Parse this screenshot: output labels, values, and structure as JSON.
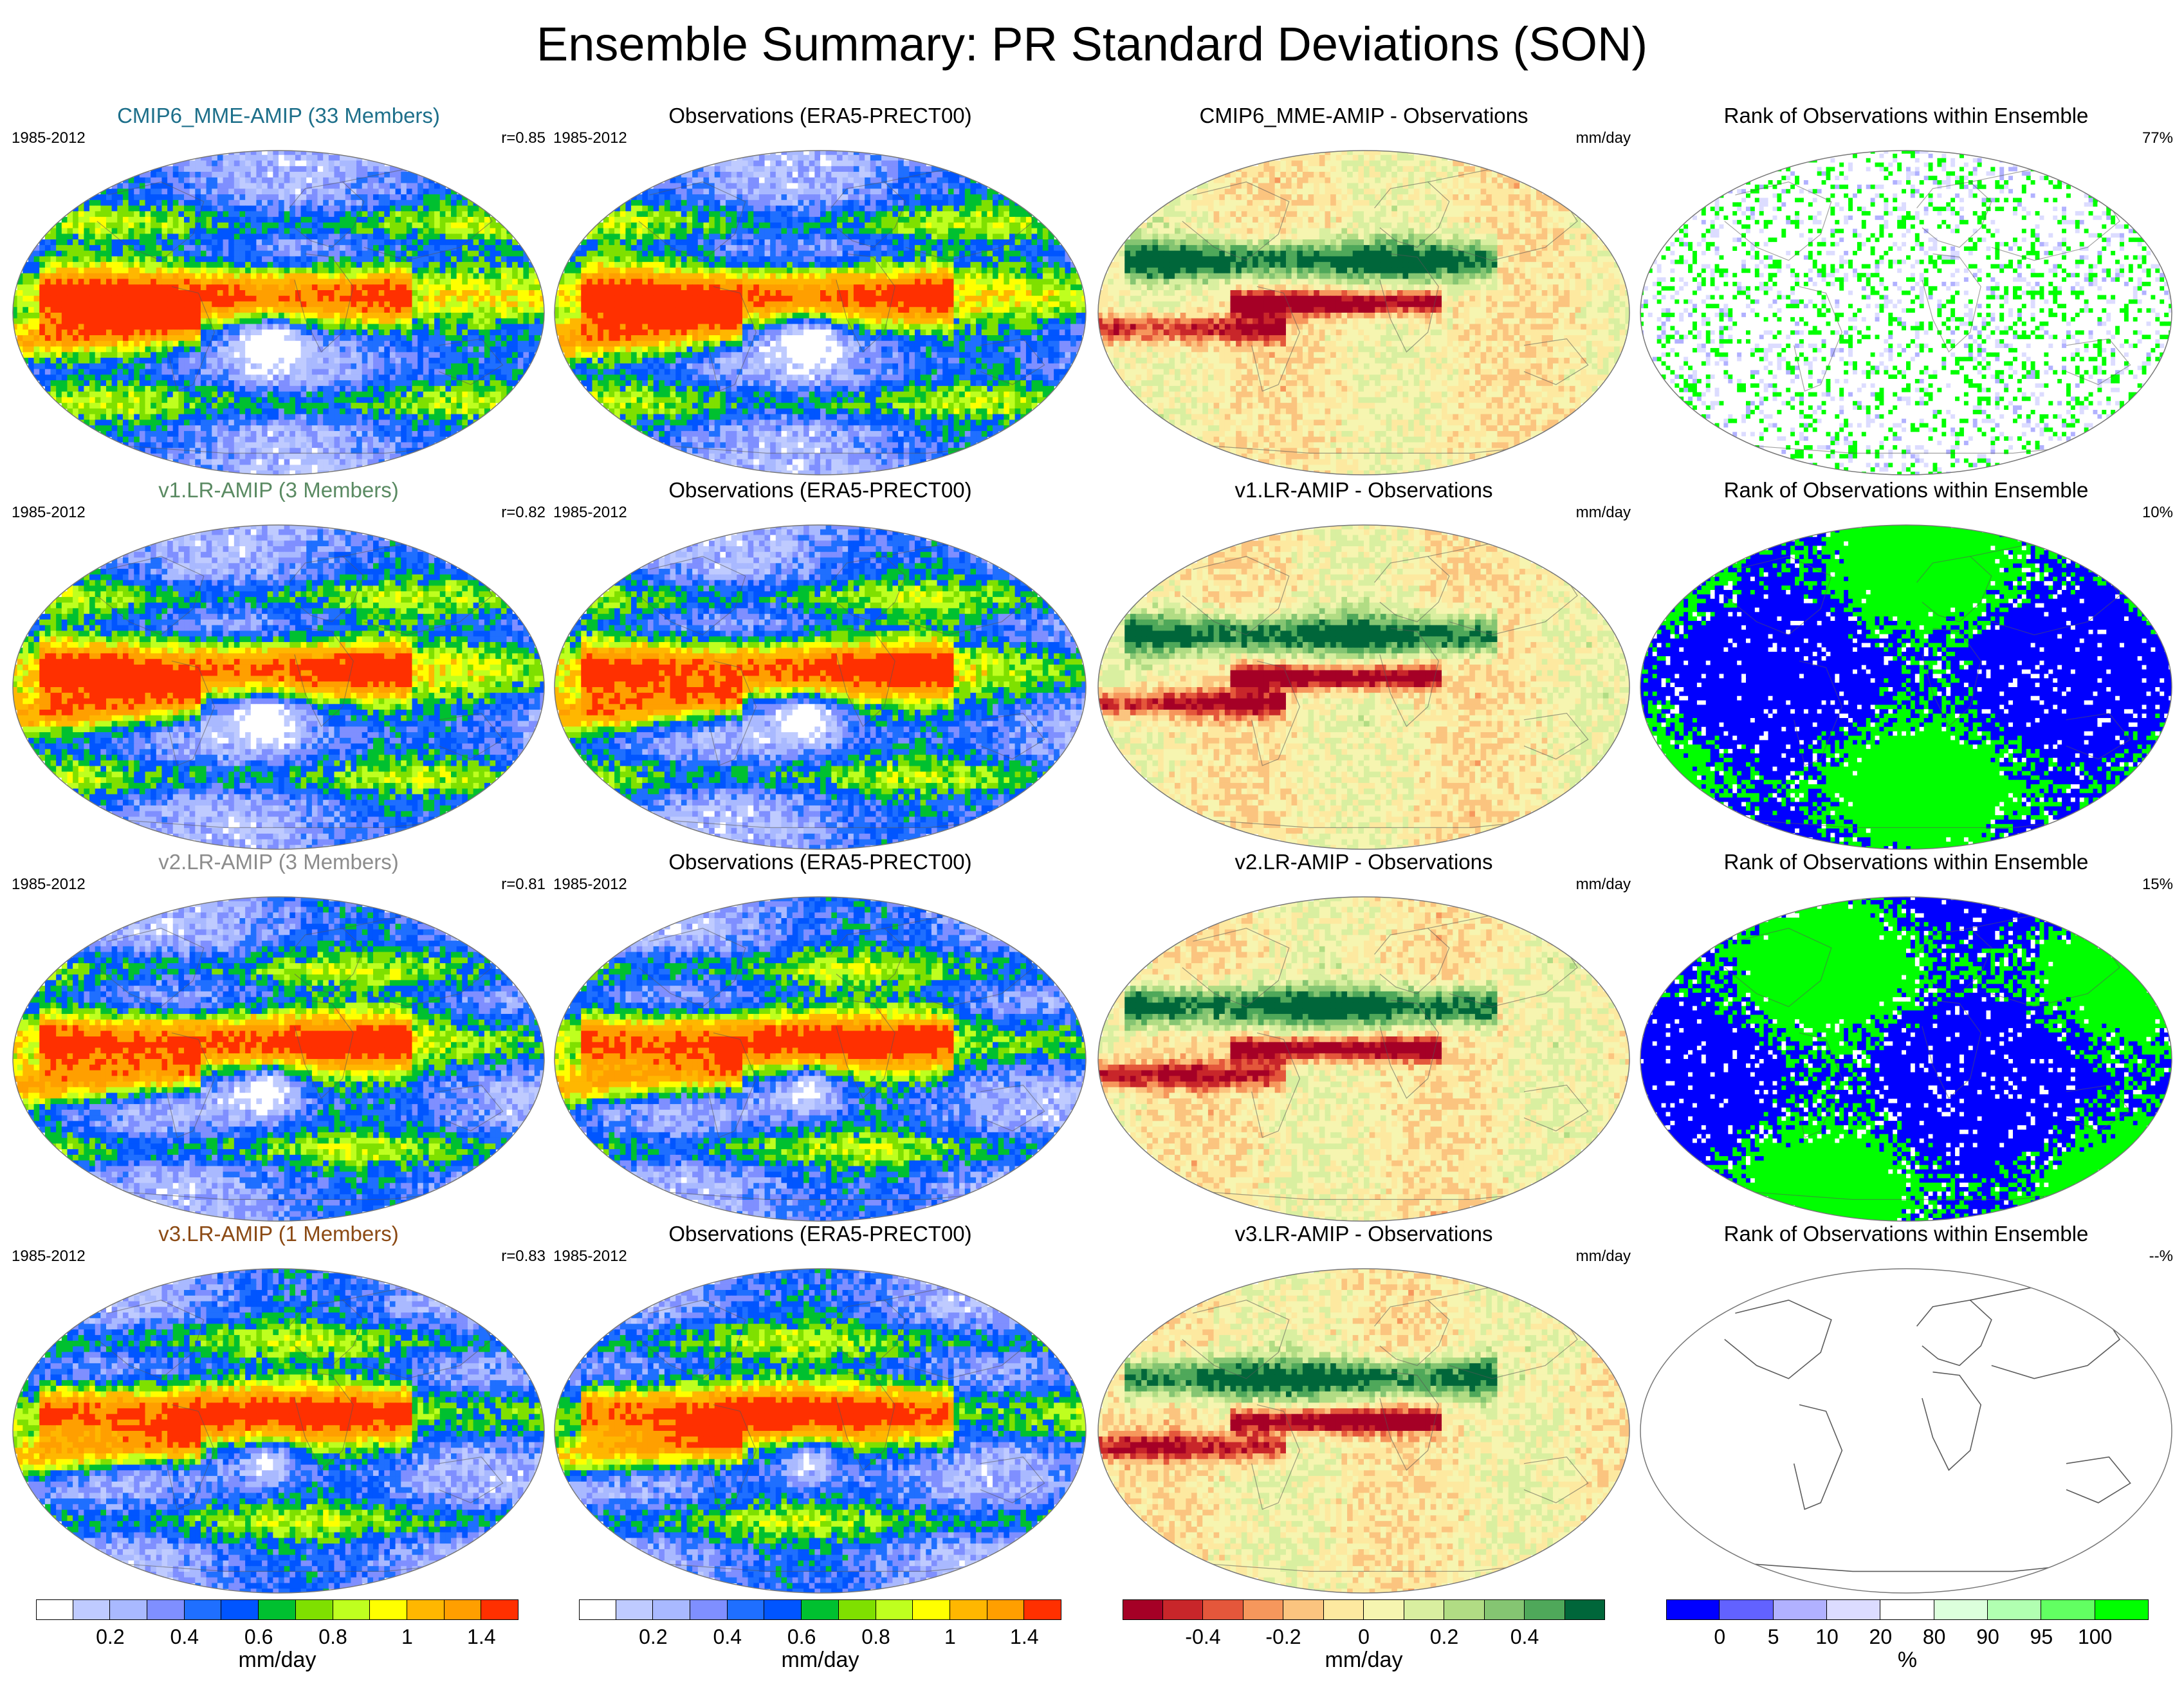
{
  "title": "Ensemble Summary: PR Standard Deviations (SON)",
  "chart_data": [
    {
      "type": "heatmap",
      "panel": "model",
      "row": 0,
      "title": "CMIP6_MME-AMIP (33 Members)",
      "title_color": "#1d6f8a",
      "period": "1985-2012",
      "stat": "r=0.85",
      "colorbar": "precip"
    },
    {
      "type": "heatmap",
      "panel": "obs",
      "row": 0,
      "title": "Observations (ERA5-PRECT00)",
      "title_color": "#000000",
      "period": "1985-2012",
      "stat": "",
      "colorbar": "precip"
    },
    {
      "type": "heatmap",
      "panel": "diff",
      "row": 0,
      "title": "CMIP6_MME-AMIP - Observations",
      "title_color": "#000000",
      "period": "",
      "stat": "mm/day",
      "colorbar": "diff"
    },
    {
      "type": "heatmap",
      "panel": "rank",
      "row": 0,
      "title": "Rank of Observations within Ensemble",
      "title_color": "#000000",
      "period": "",
      "stat": "77%",
      "colorbar": "rank"
    },
    {
      "type": "heatmap",
      "panel": "model",
      "row": 1,
      "title": "v1.LR-AMIP (3 Members)",
      "title_color": "#5a8a62",
      "period": "1985-2012",
      "stat": "r=0.82",
      "colorbar": "precip"
    },
    {
      "type": "heatmap",
      "panel": "obs",
      "row": 1,
      "title": "Observations (ERA5-PRECT00)",
      "title_color": "#000000",
      "period": "1985-2012",
      "stat": "",
      "colorbar": "precip"
    },
    {
      "type": "heatmap",
      "panel": "diff",
      "row": 1,
      "title": "v1.LR-AMIP - Observations",
      "title_color": "#000000",
      "period": "",
      "stat": "mm/day",
      "colorbar": "diff"
    },
    {
      "type": "heatmap",
      "panel": "rank",
      "row": 1,
      "title": "Rank of Observations within Ensemble",
      "title_color": "#000000",
      "period": "",
      "stat": "10%",
      "colorbar": "rank"
    },
    {
      "type": "heatmap",
      "panel": "model",
      "row": 2,
      "title": "v2.LR-AMIP (3 Members)",
      "title_color": "#8c8c8c",
      "period": "1985-2012",
      "stat": "r=0.81",
      "colorbar": "precip"
    },
    {
      "type": "heatmap",
      "panel": "obs",
      "row": 2,
      "title": "Observations (ERA5-PRECT00)",
      "title_color": "#000000",
      "period": "1985-2012",
      "stat": "",
      "colorbar": "precip"
    },
    {
      "type": "heatmap",
      "panel": "diff",
      "row": 2,
      "title": "v2.LR-AMIP - Observations",
      "title_color": "#000000",
      "period": "",
      "stat": "mm/day",
      "colorbar": "diff"
    },
    {
      "type": "heatmap",
      "panel": "rank",
      "row": 2,
      "title": "Rank of Observations within Ensemble",
      "title_color": "#000000",
      "period": "",
      "stat": "15%",
      "colorbar": "rank"
    },
    {
      "type": "heatmap",
      "panel": "model",
      "row": 3,
      "title": "v3.LR-AMIP (1 Members)",
      "title_color": "#8b4a14",
      "period": "1985-2012",
      "stat": "r=0.83",
      "colorbar": "precip"
    },
    {
      "type": "heatmap",
      "panel": "obs",
      "row": 3,
      "title": "Observations (ERA5-PRECT00)",
      "title_color": "#000000",
      "period": "1985-2012",
      "stat": "",
      "colorbar": "precip"
    },
    {
      "type": "heatmap",
      "panel": "diff",
      "row": 3,
      "title": "v3.LR-AMIP - Observations",
      "title_color": "#000000",
      "period": "",
      "stat": "mm/day",
      "colorbar": "diff"
    },
    {
      "type": "heatmap",
      "panel": "rank",
      "row": 3,
      "title": "Rank of Observations within Ensemble",
      "title_color": "#000000",
      "period": "",
      "stat": "--%",
      "colorbar": "rank"
    }
  ],
  "colorbars": [
    {
      "id": "precip",
      "unit": "mm/day",
      "colors": [
        "#ffffff",
        "#bfcbff",
        "#a9b9ff",
        "#7f8fff",
        "#1f6fff",
        "#0055ff",
        "#00c030",
        "#7fe000",
        "#bfff1f",
        "#ffff00",
        "#ffb700",
        "#ff9f00",
        "#ff3000"
      ],
      "ticks": [
        {
          "value": 0.2,
          "label": "0.2",
          "boundary": 2
        },
        {
          "value": 0.4,
          "label": "0.4",
          "boundary": 4
        },
        {
          "value": 0.6,
          "label": "0.6",
          "boundary": 6
        },
        {
          "value": 0.8,
          "label": "0.8",
          "boundary": 8
        },
        {
          "value": 1,
          "label": "1",
          "boundary": 10
        },
        {
          "value": 1.4,
          "label": "1.4",
          "boundary": 12
        }
      ]
    },
    {
      "id": "precip2",
      "unit": "mm/day",
      "colors": [
        "#ffffff",
        "#bfcbff",
        "#a9b9ff",
        "#7f8fff",
        "#1f6fff",
        "#0055ff",
        "#00c030",
        "#7fe000",
        "#bfff1f",
        "#ffff00",
        "#ffb700",
        "#ff9f00",
        "#ff3000"
      ],
      "ticks": [
        {
          "value": 0.2,
          "label": "0.2",
          "boundary": 2
        },
        {
          "value": 0.4,
          "label": "0.4",
          "boundary": 4
        },
        {
          "value": 0.6,
          "label": "0.6",
          "boundary": 6
        },
        {
          "value": 0.8,
          "label": "0.8",
          "boundary": 8
        },
        {
          "value": 1,
          "label": "1",
          "boundary": 10
        },
        {
          "value": 1.4,
          "label": "1.4",
          "boundary": 12
        }
      ]
    },
    {
      "id": "diff",
      "unit": "mm/day",
      "colors": [
        "#a50026",
        "#c8262a",
        "#e4573b",
        "#f6975c",
        "#fbc47f",
        "#fde9a0",
        "#f6f5b0",
        "#d9efa0",
        "#b1dc84",
        "#85c572",
        "#4fa85a",
        "#00663a"
      ],
      "ticks": [
        {
          "value": -0.4,
          "label": "-0.4",
          "boundary": 2
        },
        {
          "value": -0.2,
          "label": "-0.2",
          "boundary": 4
        },
        {
          "value": 0,
          "label": "0",
          "boundary": 6
        },
        {
          "value": 0.2,
          "label": "0.2",
          "boundary": 8
        },
        {
          "value": 0.4,
          "label": "0.4",
          "boundary": 10
        }
      ]
    },
    {
      "id": "rank",
      "unit": "%",
      "colors": [
        "#0000ff",
        "#6262ff",
        "#b1b1ff",
        "#dcdcff",
        "#ffffff",
        "#dcffdc",
        "#b1ffb1",
        "#62ff62",
        "#00ff00"
      ],
      "ticks": [
        {
          "value": 0,
          "label": "0",
          "boundary": 1
        },
        {
          "value": 5,
          "label": "5",
          "boundary": 2
        },
        {
          "value": 10,
          "label": "10",
          "boundary": 3
        },
        {
          "value": 20,
          "label": "20",
          "boundary": 4
        },
        {
          "value": 80,
          "label": "80",
          "boundary": 5
        },
        {
          "value": 90,
          "label": "90",
          "boundary": 6
        },
        {
          "value": 95,
          "label": "95",
          "boundary": 7
        },
        {
          "value": 100,
          "label": "100",
          "boundary": 8
        }
      ]
    }
  ]
}
